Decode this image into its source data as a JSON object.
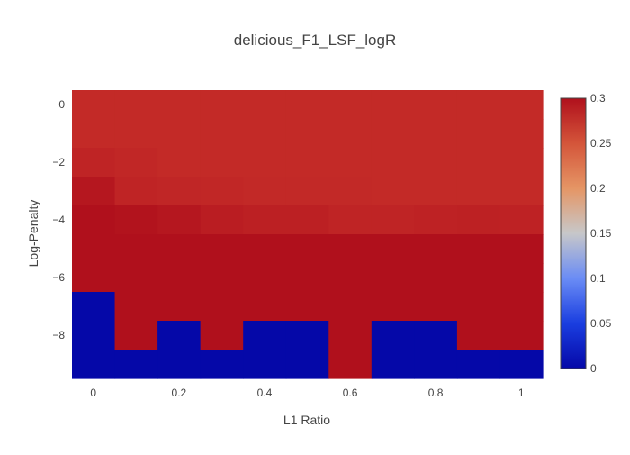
{
  "chart_data": {
    "type": "heatmap",
    "title": "delicious_F1_LSF_logR",
    "xlabel": "L1 Ratio",
    "ylabel": "Log-Penalty",
    "x": [
      0,
      0.1,
      0.2,
      0.3,
      0.4,
      0.5,
      0.6,
      0.7,
      0.8,
      0.9,
      1.0
    ],
    "y": [
      0,
      -1,
      -2,
      -3,
      -4,
      -5,
      -6,
      -7,
      -8,
      -9
    ],
    "z": [
      [
        0.28,
        0.28,
        0.28,
        0.28,
        0.28,
        0.28,
        0.28,
        0.28,
        0.28,
        0.28,
        0.28
      ],
      [
        0.28,
        0.28,
        0.28,
        0.28,
        0.28,
        0.28,
        0.28,
        0.28,
        0.28,
        0.28,
        0.28
      ],
      [
        0.285,
        0.282,
        0.28,
        0.28,
        0.28,
        0.28,
        0.28,
        0.28,
        0.28,
        0.28,
        0.28
      ],
      [
        0.295,
        0.285,
        0.283,
        0.282,
        0.281,
        0.281,
        0.281,
        0.28,
        0.28,
        0.28,
        0.28
      ],
      [
        0.305,
        0.298,
        0.295,
        0.29,
        0.288,
        0.288,
        0.285,
        0.285,
        0.286,
        0.287,
        0.286
      ],
      [
        0.306,
        0.305,
        0.307,
        0.305,
        0.304,
        0.303,
        0.303,
        0.303,
        0.302,
        0.305,
        0.304
      ],
      [
        0.304,
        0.303,
        0.303,
        0.303,
        0.303,
        0.303,
        0.303,
        0.303,
        0.303,
        0.305,
        0.305
      ],
      [
        0.0,
        0.303,
        0.303,
        0.302,
        0.302,
        0.302,
        0.302,
        0.302,
        0.302,
        0.303,
        0.303
      ],
      [
        0.0,
        0.302,
        0.0,
        0.302,
        0.0,
        0.0,
        0.302,
        0.0,
        0.0,
        0.302,
        0.302
      ],
      [
        0.0,
        0.0,
        0.0,
        0.0,
        0.0,
        0.0,
        0.302,
        0.0,
        0.0,
        0.0,
        0.0
      ]
    ],
    "xticks": [
      0,
      0.2,
      0.4,
      0.6,
      0.8,
      1
    ],
    "xtick_labels": [
      "0",
      "0.2",
      "0.4",
      "0.6",
      "0.8",
      "1"
    ],
    "yticks": [
      0,
      -2,
      -4,
      -6,
      -8
    ],
    "ytick_labels": [
      "0",
      "−2",
      "−4",
      "−6",
      "−8"
    ],
    "zmin": 0,
    "zmax": 0.3,
    "colorbar_ticks": [
      0,
      0.05,
      0.1,
      0.15,
      0.2,
      0.25,
      0.3
    ],
    "colorbar_tick_labels": [
      "0",
      "0.05",
      "0.1",
      "0.15",
      "0.2",
      "0.25",
      "0.3"
    ],
    "colorscale": [
      [
        0.0,
        "#0508b8"
      ],
      [
        0.35,
        "#1910d8"
      ],
      [
        0.5,
        "#3c19f0"
      ],
      [
        0.6,
        "#6b1cfb"
      ],
      [
        0.7,
        "#981cfd"
      ],
      [
        0.8,
        "#c21dfe"
      ],
      [
        0.9,
        "#e522e1"
      ],
      [
        1.0,
        "#ff2a7f"
      ]
    ],
    "colors": {
      "low": "#0c0aa8",
      "mid": "#c8c8c8",
      "high": "#b0101c"
    },
    "grid": false,
    "legend": "colorbar-right"
  }
}
